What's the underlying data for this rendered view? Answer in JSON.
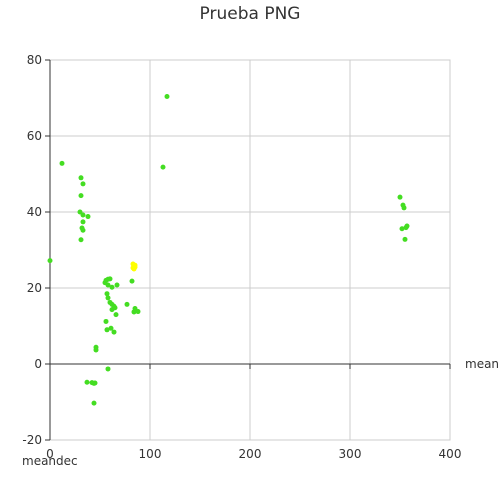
{
  "chart_data": {
    "type": "scatter",
    "title": "Prueba PNG",
    "xlabel": "meanra",
    "ylabel": "meandec",
    "xlim": [
      0,
      400
    ],
    "ylim": [
      -20,
      80
    ],
    "x_ticks": [
      "0",
      "100",
      "200",
      "300",
      "400"
    ],
    "y_ticks": [
      "-20",
      "0",
      "20",
      "40",
      "60",
      "80"
    ],
    "grid": true,
    "series": [
      {
        "color": "#44dd22",
        "points": [
          [
            0,
            27.2
          ],
          [
            12,
            52.8
          ],
          [
            31,
            49
          ],
          [
            33,
            47.4
          ],
          [
            31,
            44.3
          ],
          [
            30,
            40
          ],
          [
            33,
            39.2
          ],
          [
            38,
            38.8
          ],
          [
            33,
            37.4
          ],
          [
            32,
            35.8
          ],
          [
            33,
            35.2
          ],
          [
            31,
            32.7
          ],
          [
            56,
            22
          ],
          [
            58,
            22.3
          ],
          [
            60,
            22.4
          ],
          [
            55,
            21.4
          ],
          [
            58,
            20.8
          ],
          [
            62,
            20.2
          ],
          [
            67,
            20.8
          ],
          [
            57,
            18.5
          ],
          [
            58,
            17.4
          ],
          [
            60,
            16.2
          ],
          [
            62,
            15.7
          ],
          [
            64,
            15.2
          ],
          [
            62,
            14.3
          ],
          [
            65,
            14.8
          ],
          [
            66,
            13
          ],
          [
            56,
            11.2
          ],
          [
            57,
            9
          ],
          [
            61,
            9.4
          ],
          [
            64,
            8.4
          ],
          [
            77,
            15.7
          ],
          [
            82,
            21.8
          ],
          [
            85,
            14.6
          ],
          [
            84,
            13.7
          ],
          [
            88,
            13.8
          ],
          [
            46,
            4.4
          ],
          [
            46,
            3.7
          ],
          [
            58,
            -1.3
          ],
          [
            37,
            -4.8
          ],
          [
            42,
            -4.9
          ],
          [
            44,
            -5.1
          ],
          [
            45,
            -5.0
          ],
          [
            44,
            -10.3
          ],
          [
            113,
            51.8
          ],
          [
            117,
            70.4
          ],
          [
            350,
            43.9
          ],
          [
            353,
            41.8
          ],
          [
            354,
            41.1
          ],
          [
            352,
            35.6
          ],
          [
            356,
            35.9
          ],
          [
            357,
            36.3
          ],
          [
            355,
            32.8
          ]
        ]
      },
      {
        "color": "#ffff00",
        "points": [
          [
            83,
            26.3
          ],
          [
            84,
            25.8
          ],
          [
            85,
            26.0
          ],
          [
            83,
            25.3
          ],
          [
            84,
            25.0
          ],
          [
            85,
            25.5
          ]
        ]
      }
    ]
  }
}
